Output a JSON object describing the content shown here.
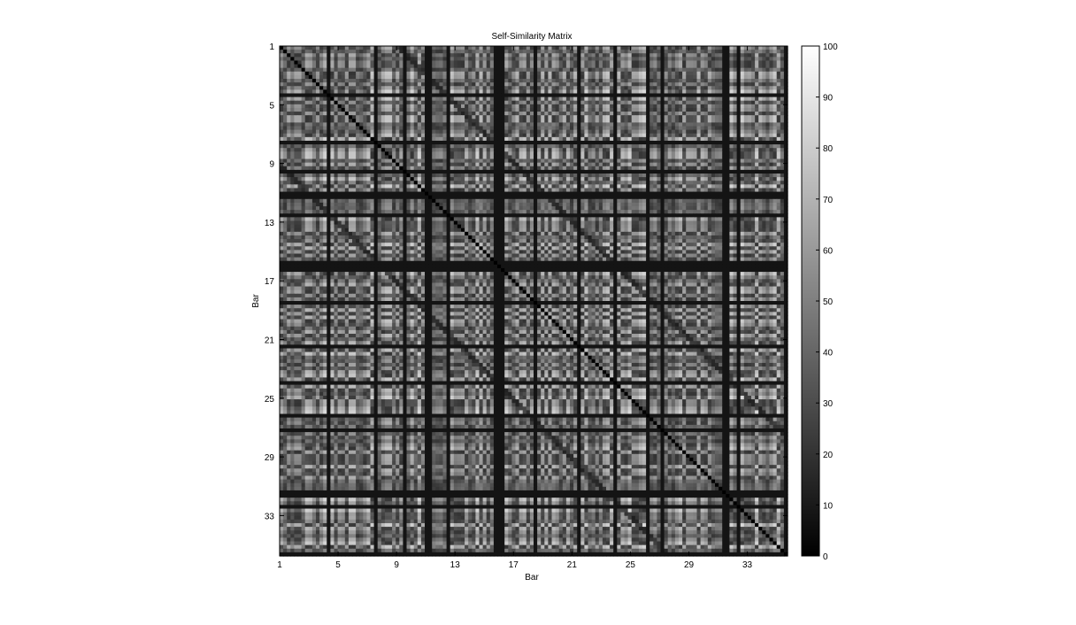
{
  "chart_data": {
    "type": "heatmap",
    "title": "Self-Similarity Matrix",
    "xlabel": "Bar",
    "ylabel": "Bar",
    "x_ticks": [
      1,
      5,
      9,
      13,
      17,
      21,
      25,
      29,
      33
    ],
    "y_ticks": [
      1,
      5,
      9,
      13,
      17,
      21,
      25,
      29,
      33
    ],
    "xlim": [
      1,
      35.75
    ],
    "ylim": [
      1,
      35.75
    ],
    "grid_cells": 140,
    "colormap": "gray",
    "colorbar": {
      "ticks": [
        0,
        10,
        20,
        30,
        40,
        50,
        60,
        70,
        80,
        90,
        100
      ],
      "range": [
        0,
        100
      ],
      "low_color": "#000000",
      "high_color": "#ffffff"
    },
    "diagonal_value": 0,
    "secondary_diagonal_offsets_bars": [
      -8,
      8
    ]
  }
}
